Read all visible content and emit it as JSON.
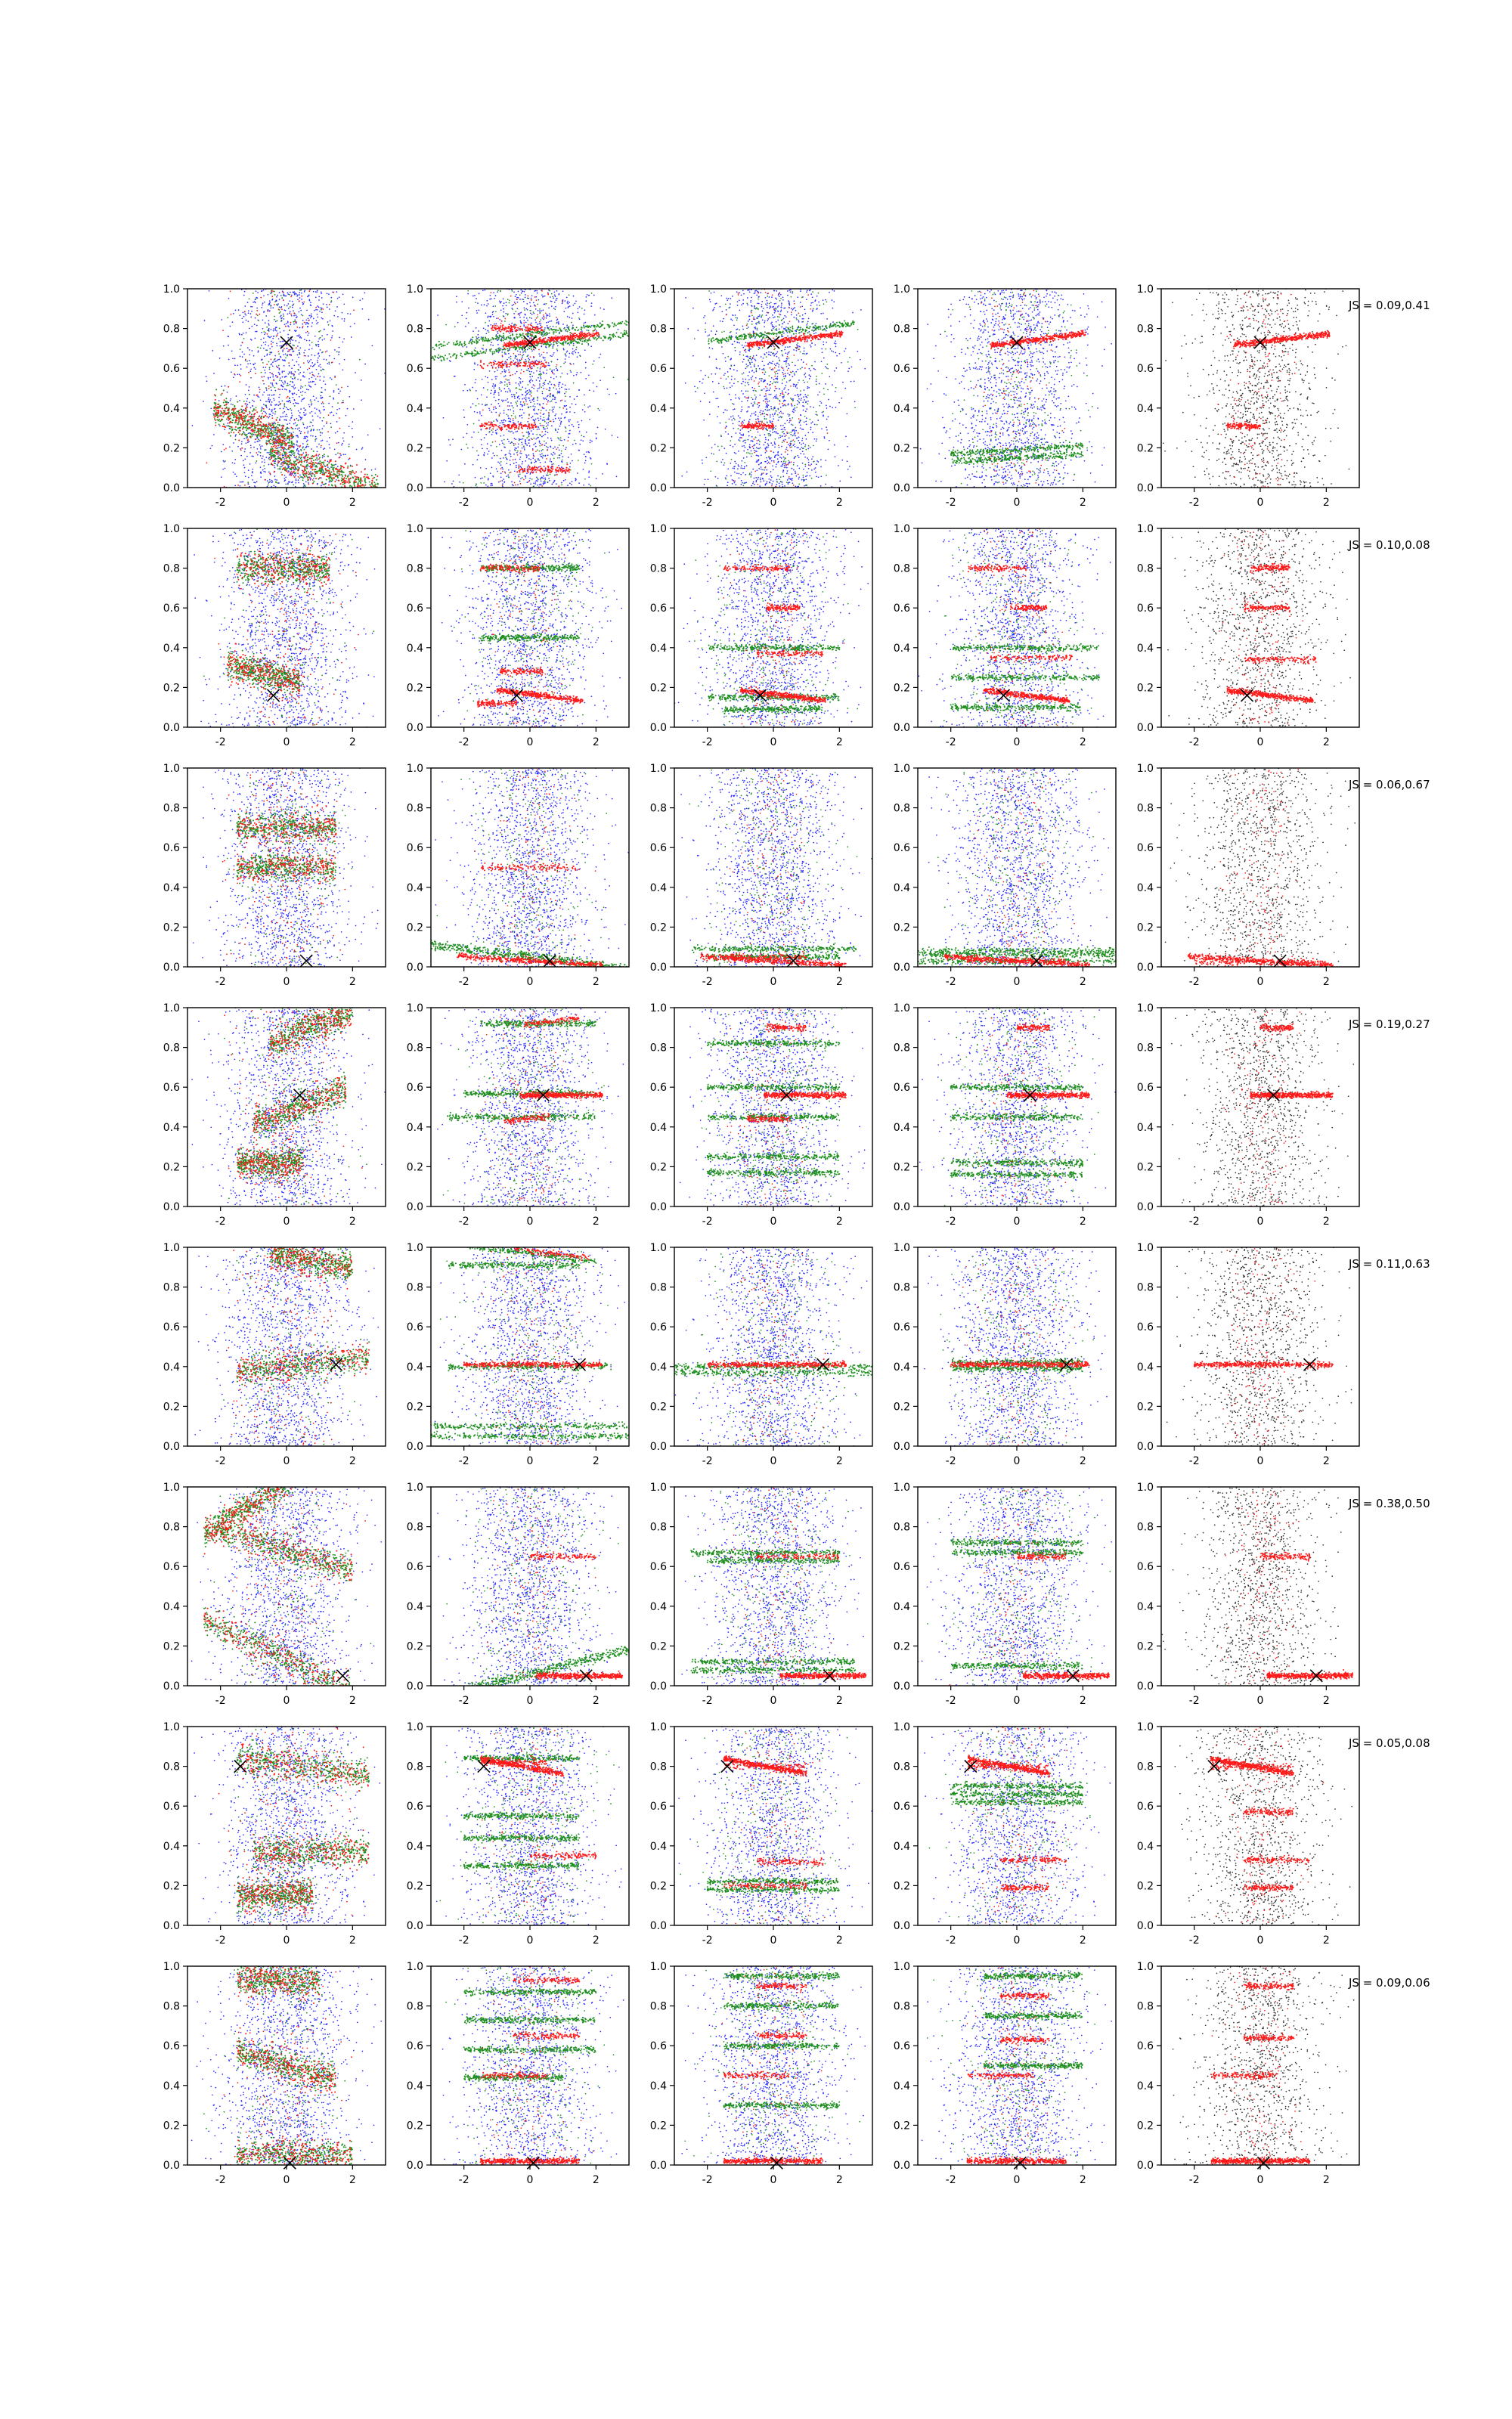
{
  "figure": {
    "title": "",
    "rows": 8,
    "cols": 5
  },
  "chart_data": {
    "type": "scatter",
    "xlim": [
      -3,
      3
    ],
    "ylim": [
      0,
      1
    ],
    "xticks": [
      "-2",
      "0",
      "2"
    ],
    "yticks": [
      "0.0",
      "0.2",
      "0.4",
      "0.6",
      "0.8",
      "1.0"
    ],
    "colors": {
      "blue": "#2b2bff",
      "green": "#1f8f1f",
      "red": "#ff1a1a",
      "gray": "#333333",
      "marker": "#000000"
    },
    "rows": [
      {
        "js": "JS = 0.09,0.41",
        "x_marker": [
          0.0,
          0.73
        ],
        "red_y": 0.745,
        "red_x": [
          -0.8,
          2.1
        ],
        "red_slope": 0.02,
        "mix_bands": [
          [
            -2.2,
            0.2,
            0.31,
            -0.07
          ],
          [
            -0.5,
            2.8,
            0.08,
            -0.05
          ]
        ],
        "green_bands": [
          [
            [
              -3.0,
              3.0,
              0.77,
              0.02
            ],
            [
              -3.0,
              3.0,
              0.71,
              0.02
            ]
          ],
          [
            [
              -2.0,
              2.5,
              0.78,
              0.02
            ]
          ],
          [
            [
              -2.0,
              2.0,
              0.19,
              0.01
            ],
            [
              -2.0,
              2.0,
              0.15,
              0.01
            ]
          ]
        ],
        "red_extra": [
          [
            [
              -1.5,
              0.2,
              0.31,
              0.0
            ],
            [
              -0.4,
              1.2,
              0.09,
              0.0
            ],
            [
              -1.2,
              0.4,
              0.8,
              0.0
            ],
            [
              -1.5,
              0.5,
              0.62,
              0.0
            ]
          ],
          [
            [
              -1.0,
              0.0,
              0.31,
              0.0
            ]
          ],
          [],
          [
            [
              -1.0,
              0.0,
              0.31,
              0.0
            ]
          ]
        ]
      },
      {
        "js": "JS = 0.10,0.08",
        "x_marker": [
          -0.4,
          0.16
        ],
        "red_y": 0.16,
        "red_x": [
          -1.0,
          1.6
        ],
        "red_slope": -0.02,
        "mix_bands": [
          [
            -1.8,
            0.4,
            0.27,
            -0.04
          ],
          [
            -1.5,
            1.3,
            0.8,
            0.0
          ]
        ],
        "green_bands": [
          [
            [
              -1.5,
              1.5,
              0.8,
              0.0
            ],
            [
              -1.5,
              1.5,
              0.45,
              0.0
            ]
          ],
          [
            [
              -2.0,
              2.0,
              0.4,
              0.0
            ],
            [
              -2.0,
              2.0,
              0.15,
              0.0
            ],
            [
              -1.5,
              1.5,
              0.09,
              0.0
            ]
          ],
          [
            [
              -2.0,
              2.5,
              0.4,
              0.0
            ],
            [
              -2.0,
              2.5,
              0.25,
              0.0
            ],
            [
              -2.0,
              2.0,
              0.1,
              0.0
            ]
          ]
        ],
        "red_extra": [
          [
            [
              -1.5,
              0.3,
              0.8,
              0.0
            ],
            [
              -0.9,
              0.4,
              0.28,
              0.0
            ],
            [
              -1.6,
              -0.4,
              0.12,
              0.0
            ]
          ],
          [
            [
              -1.5,
              0.5,
              0.8,
              0.0
            ],
            [
              -0.2,
              0.8,
              0.6,
              0.0
            ],
            [
              -0.5,
              1.5,
              0.37,
              0.0
            ]
          ],
          [
            [
              -1.5,
              0.3,
              0.8,
              0.0
            ],
            [
              -0.2,
              0.9,
              0.6,
              0.0
            ],
            [
              -0.8,
              1.7,
              0.35,
              0.0
            ]
          ],
          [
            [
              -0.3,
              0.9,
              0.8,
              0.0
            ],
            [
              -0.5,
              0.9,
              0.6,
              0.0
            ],
            [
              -0.5,
              1.7,
              0.34,
              0.0
            ]
          ]
        ]
      },
      {
        "js": "JS = 0.06,0.67",
        "x_marker": [
          0.6,
          0.03
        ],
        "red_y": 0.03,
        "red_x": [
          -2.2,
          2.2
        ],
        "red_slope": -0.01,
        "mix_bands": [
          [
            -1.5,
            1.5,
            0.5,
            0.0
          ],
          [
            -1.5,
            1.5,
            0.7,
            0.0
          ]
        ],
        "green_bands": [
          [
            [
              -3.0,
              3.0,
              0.04,
              -0.02
            ],
            [
              -3.0,
              3.0,
              0.06,
              -0.02
            ]
          ],
          [
            [
              -2.5,
              2.5,
              0.09,
              0.0
            ],
            [
              -2.0,
              2.0,
              0.05,
              0.0
            ]
          ],
          [
            [
              -3.0,
              3.0,
              0.08,
              0.0
            ],
            [
              -3.0,
              3.0,
              0.06,
              0.0
            ],
            [
              -3.0,
              3.0,
              0.03,
              0.0
            ]
          ]
        ],
        "red_extra": [
          [
            [
              -1.5,
              1.5,
              0.5,
              0.0
            ]
          ],
          [
            [
              -1.5,
              1.0,
              0.05,
              0.0
            ]
          ],
          [
            [
              -1.5,
              1.5,
              0.03,
              0.0
            ]
          ],
          [
            [
              -2.0,
              2.0,
              0.02,
              0.0
            ]
          ]
        ]
      },
      {
        "js": "JS = 0.19,0.27",
        "x_marker": [
          0.4,
          0.56
        ],
        "red_y": 0.56,
        "red_x": [
          -0.3,
          2.2
        ],
        "red_slope": 0.0,
        "mix_bands": [
          [
            -0.5,
            2.0,
            0.9,
            0.07
          ],
          [
            -1.0,
            1.8,
            0.5,
            0.07
          ],
          [
            -1.5,
            0.5,
            0.22,
            0.0
          ]
        ],
        "green_bands": [
          [
            [
              -1.5,
              2.0,
              0.92,
              0.0
            ],
            [
              -2.0,
              2.0,
              0.57,
              0.0
            ],
            [
              -2.5,
              2.0,
              0.45,
              0.0
            ]
          ],
          [
            [
              -2.0,
              2.0,
              0.82,
              0.0
            ],
            [
              -2.0,
              2.0,
              0.6,
              0.0
            ],
            [
              -2.0,
              2.0,
              0.45,
              0.0
            ],
            [
              -2.0,
              2.0,
              0.25,
              0.0
            ],
            [
              -2.0,
              2.0,
              0.17,
              0.0
            ]
          ],
          [
            [
              -2.0,
              2.0,
              0.6,
              0.0
            ],
            [
              -2.0,
              2.0,
              0.45,
              0.0
            ],
            [
              -2.0,
              2.0,
              0.22,
              0.0
            ],
            [
              -2.0,
              2.0,
              0.16,
              0.0
            ]
          ]
        ],
        "red_extra": [
          [
            [
              -0.2,
              1.5,
              0.93,
              0.02
            ],
            [
              -0.8,
              0.6,
              0.44,
              0.02
            ]
          ],
          [
            [
              -0.2,
              1.0,
              0.9,
              0.0
            ],
            [
              -0.8,
              0.5,
              0.44,
              0.0
            ]
          ],
          [
            [
              0.0,
              1.0,
              0.9,
              0.0
            ]
          ],
          [
            [
              0.0,
              1.0,
              0.9,
              0.0
            ]
          ]
        ]
      },
      {
        "js": "JS = 0.11,0.63",
        "x_marker": [
          1.5,
          0.41
        ],
        "red_y": 0.41,
        "red_x": [
          -2.0,
          2.2
        ],
        "red_slope": 0.0,
        "mix_bands": [
          [
            -0.5,
            2.0,
            0.93,
            -0.03
          ],
          [
            -1.5,
            2.5,
            0.41,
            0.02
          ]
        ],
        "green_bands": [
          [
            [
              -2.0,
              2.0,
              0.97,
              -0.02
            ],
            [
              -2.5,
              1.5,
              0.91,
              0.0
            ],
            [
              -2.5,
              2.5,
              0.4,
              0.0
            ],
            [
              -3.0,
              3.0,
              0.1,
              0.0
            ],
            [
              -3.0,
              3.0,
              0.05,
              0.0
            ]
          ],
          [
            [
              -3.0,
              3.0,
              0.4,
              0.0
            ],
            [
              -3.0,
              3.0,
              0.37,
              0.0
            ]
          ],
          [
            [
              -2.0,
              2.0,
              0.42,
              0.0
            ],
            [
              -2.0,
              2.0,
              0.39,
              0.0
            ]
          ]
        ],
        "red_extra": [
          [
            [
              -0.5,
              1.8,
              0.97,
              -0.02
            ]
          ],
          [],
          []
        ]
      },
      {
        "js": "JS = 0.38,0.50",
        "x_marker": [
          1.7,
          0.05
        ],
        "red_y": 0.05,
        "red_x": [
          0.2,
          2.8
        ],
        "red_slope": 0.0,
        "mix_bands": [
          [
            -2.5,
            0.2,
            0.9,
            0.1
          ],
          [
            -2.0,
            2.0,
            0.68,
            -0.05
          ],
          [
            -2.5,
            2.0,
            0.15,
            -0.08
          ]
        ],
        "green_bands": [
          [
            [
              -3.0,
              3.0,
              0.07,
              0.04
            ],
            [
              -3.0,
              3.0,
              0.05,
              0.04
            ]
          ],
          [
            [
              -2.5,
              2.0,
              0.67,
              0.0
            ],
            [
              -2.0,
              2.0,
              0.63,
              0.0
            ],
            [
              -2.5,
              2.5,
              0.12,
              0.0
            ],
            [
              -2.5,
              2.5,
              0.08,
              0.0
            ]
          ],
          [
            [
              -2.0,
              2.0,
              0.72,
              0.0
            ],
            [
              -2.0,
              2.0,
              0.67,
              0.0
            ],
            [
              -2.0,
              2.0,
              0.1,
              0.0
            ]
          ]
        ],
        "red_extra": [
          [
            [
              0.0,
              2.0,
              0.65,
              0.0
            ]
          ],
          [
            [
              -0.5,
              2.0,
              0.65,
              0.0
            ]
          ],
          [
            [
              0.0,
              1.5,
              0.65,
              0.0
            ]
          ],
          [
            [
              0.0,
              1.5,
              0.65,
              0.0
            ]
          ]
        ]
      },
      {
        "js": "JS = 0.05,0.08",
        "x_marker": [
          -1.4,
          0.8
        ],
        "red_y": 0.8,
        "red_x": [
          -1.5,
          1.0
        ],
        "red_slope": -0.03,
        "mix_bands": [
          [
            -1.5,
            2.5,
            0.8,
            -0.02
          ],
          [
            -1.0,
            2.5,
            0.37,
            0.0
          ],
          [
            -1.5,
            0.8,
            0.15,
            0.0
          ]
        ],
        "green_bands": [
          [
            [
              -2.0,
              1.5,
              0.84,
              0.0
            ],
            [
              -2.0,
              1.5,
              0.55,
              0.0
            ],
            [
              -2.0,
              1.5,
              0.44,
              0.0
            ],
            [
              -2.0,
              1.5,
              0.3,
              0.0
            ]
          ],
          [
            [
              -2.0,
              2.0,
              0.22,
              0.0
            ],
            [
              -2.0,
              2.0,
              0.18,
              0.0
            ]
          ],
          [
            [
              -2.0,
              2.0,
              0.7,
              0.0
            ],
            [
              -2.0,
              2.0,
              0.66,
              0.0
            ],
            [
              -2.0,
              2.0,
              0.62,
              0.0
            ]
          ]
        ],
        "red_extra": [
          [
            [
              -1.5,
              0.5,
              0.82,
              0.0
            ],
            [
              0.0,
              2.0,
              0.35,
              0.0
            ]
          ],
          [
            [
              -1.5,
              1.0,
              0.8,
              0.0
            ],
            [
              -0.5,
              1.5,
              0.32,
              0.0
            ],
            [
              -1.5,
              1.0,
              0.2,
              0.0
            ]
          ],
          [
            [
              -1.5,
              1.0,
              0.8,
              0.0
            ],
            [
              -0.5,
              1.5,
              0.33,
              0.0
            ],
            [
              -0.5,
              1.0,
              0.19,
              0.0
            ]
          ],
          [
            [
              -1.5,
              1.0,
              0.8,
              0.0
            ],
            [
              -0.5,
              1.5,
              0.33,
              0.0
            ],
            [
              -0.5,
              1.0,
              0.19,
              0.0
            ],
            [
              -0.5,
              1.0,
              0.57,
              0.0
            ]
          ]
        ]
      },
      {
        "js": "JS = 0.09,0.06",
        "x_marker": [
          0.1,
          0.01
        ],
        "red_y": 0.02,
        "red_x": [
          -1.5,
          1.5
        ],
        "red_slope": 0.0,
        "mix_bands": [
          [
            -1.5,
            1.0,
            0.93,
            0.0
          ],
          [
            -1.5,
            1.5,
            0.5,
            -0.05
          ],
          [
            -1.5,
            2.0,
            0.05,
            0.0
          ]
        ],
        "green_bands": [
          [
            [
              -2.0,
              1.0,
              0.44,
              0.0
            ],
            [
              -2.0,
              2.0,
              0.58,
              0.0
            ],
            [
              -2.0,
              2.0,
              0.73,
              0.0
            ],
            [
              -2.0,
              2.0,
              0.87,
              0.0
            ]
          ],
          [
            [
              -1.5,
              2.0,
              0.95,
              0.0
            ],
            [
              -1.5,
              2.0,
              0.8,
              0.0
            ],
            [
              -1.5,
              2.0,
              0.6,
              0.0
            ],
            [
              -1.5,
              2.0,
              0.3,
              0.0
            ]
          ],
          [
            [
              -1.0,
              2.0,
              0.95,
              0.0
            ],
            [
              -1.0,
              2.0,
              0.75,
              0.0
            ],
            [
              -1.0,
              2.0,
              0.5,
              0.0
            ]
          ]
        ],
        "red_extra": [
          [
            [
              -0.5,
              1.5,
              0.93,
              0.0
            ],
            [
              -0.5,
              1.5,
              0.65,
              0.0
            ],
            [
              -1.5,
              0.5,
              0.45,
              0.0
            ]
          ],
          [
            [
              -1.5,
              0.5,
              0.45,
              0.0
            ],
            [
              -0.5,
              1.0,
              0.65,
              0.0
            ],
            [
              -0.5,
              1.0,
              0.9,
              0.0
            ]
          ],
          [
            [
              -1.5,
              0.5,
              0.45,
              0.0
            ],
            [
              -0.5,
              1.0,
              0.63,
              0.0
            ],
            [
              -0.5,
              1.0,
              0.85,
              0.0
            ]
          ],
          [
            [
              -1.5,
              0.5,
              0.45,
              0.0
            ],
            [
              -0.5,
              1.0,
              0.64,
              0.0
            ],
            [
              -0.5,
              1.0,
              0.9,
              0.0
            ]
          ]
        ]
      }
    ]
  }
}
